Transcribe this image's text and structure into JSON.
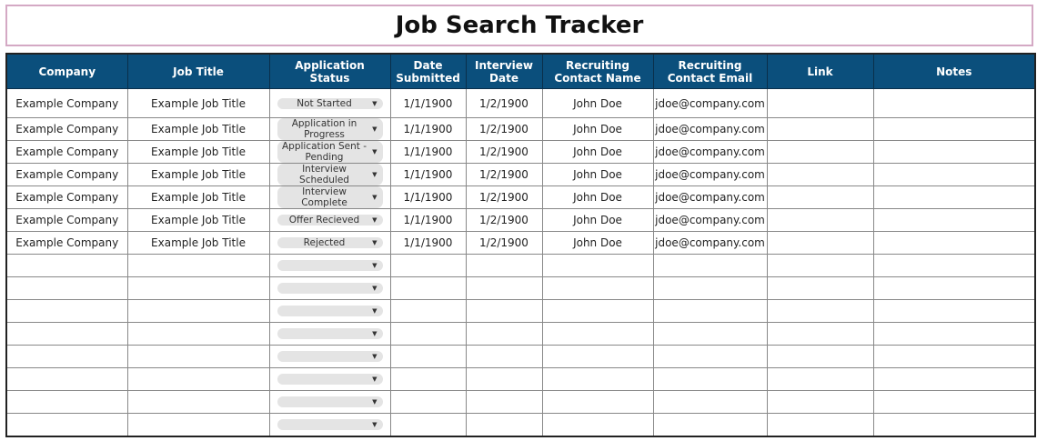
{
  "title": "Job Search Tracker",
  "colors": {
    "header_bg": "#0b4f7c",
    "title_border": "#d4a9c4",
    "dropdown_bg": "#e4e4e4"
  },
  "columns": [
    "Company",
    "Job Title",
    "Application Status",
    "Date Submitted",
    "Interview Date",
    "Recruiting Contact Name",
    "Recruiting Contact Email",
    "Link",
    "Notes"
  ],
  "rows": [
    {
      "company": "Example Company",
      "job_title": "Example Job Title",
      "status": "Not Started",
      "date_submitted": "1/1/1900",
      "interview_date": "1/2/1900",
      "contact_name": "John Doe",
      "contact_email": "jdoe@company.com",
      "link": "",
      "notes": ""
    },
    {
      "company": "Example Company",
      "job_title": "Example Job Title",
      "status": "Application in Progress",
      "date_submitted": "1/1/1900",
      "interview_date": "1/2/1900",
      "contact_name": "John Doe",
      "contact_email": "jdoe@company.com",
      "link": "",
      "notes": ""
    },
    {
      "company": "Example Company",
      "job_title": "Example Job Title",
      "status": "Application Sent - Pending",
      "date_submitted": "1/1/1900",
      "interview_date": "1/2/1900",
      "contact_name": "John Doe",
      "contact_email": "jdoe@company.com",
      "link": "",
      "notes": ""
    },
    {
      "company": "Example Company",
      "job_title": "Example Job Title",
      "status": "Interview Scheduled",
      "date_submitted": "1/1/1900",
      "interview_date": "1/2/1900",
      "contact_name": "John Doe",
      "contact_email": "jdoe@company.com",
      "link": "",
      "notes": ""
    },
    {
      "company": "Example Company",
      "job_title": "Example Job Title",
      "status": "Interview Complete",
      "date_submitted": "1/1/1900",
      "interview_date": "1/2/1900",
      "contact_name": "John Doe",
      "contact_email": "jdoe@company.com",
      "link": "",
      "notes": ""
    },
    {
      "company": "Example Company",
      "job_title": "Example Job Title",
      "status": "Offer Recieved",
      "date_submitted": "1/1/1900",
      "interview_date": "1/2/1900",
      "contact_name": "John Doe",
      "contact_email": "jdoe@company.com",
      "link": "",
      "notes": ""
    },
    {
      "company": "Example Company",
      "job_title": "Example Job Title",
      "status": "Rejected",
      "date_submitted": "1/1/1900",
      "interview_date": "1/2/1900",
      "contact_name": "John Doe",
      "contact_email": "jdoe@company.com",
      "link": "",
      "notes": ""
    },
    {
      "company": "",
      "job_title": "",
      "status": "",
      "date_submitted": "",
      "interview_date": "",
      "contact_name": "",
      "contact_email": "",
      "link": "",
      "notes": ""
    },
    {
      "company": "",
      "job_title": "",
      "status": "",
      "date_submitted": "",
      "interview_date": "",
      "contact_name": "",
      "contact_email": "",
      "link": "",
      "notes": ""
    },
    {
      "company": "",
      "job_title": "",
      "status": "",
      "date_submitted": "",
      "interview_date": "",
      "contact_name": "",
      "contact_email": "",
      "link": "",
      "notes": ""
    },
    {
      "company": "",
      "job_title": "",
      "status": "",
      "date_submitted": "",
      "interview_date": "",
      "contact_name": "",
      "contact_email": "",
      "link": "",
      "notes": ""
    },
    {
      "company": "",
      "job_title": "",
      "status": "",
      "date_submitted": "",
      "interview_date": "",
      "contact_name": "",
      "contact_email": "",
      "link": "",
      "notes": ""
    },
    {
      "company": "",
      "job_title": "",
      "status": "",
      "date_submitted": "",
      "interview_date": "",
      "contact_name": "",
      "contact_email": "",
      "link": "",
      "notes": ""
    },
    {
      "company": "",
      "job_title": "",
      "status": "",
      "date_submitted": "",
      "interview_date": "",
      "contact_name": "",
      "contact_email": "",
      "link": "",
      "notes": ""
    },
    {
      "company": "",
      "job_title": "",
      "status": "",
      "date_submitted": "",
      "interview_date": "",
      "contact_name": "",
      "contact_email": "",
      "link": "",
      "notes": ""
    }
  ]
}
